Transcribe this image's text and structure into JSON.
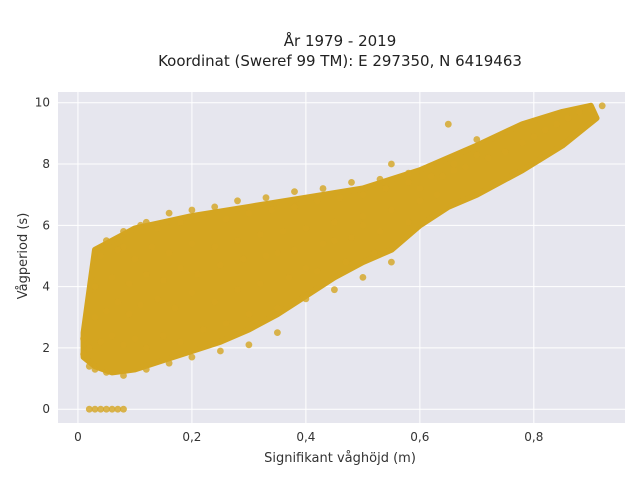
{
  "chart_data": {
    "type": "scatter",
    "title": "År 1979 - 2019",
    "subtitle": "Koordinat (Sweref 99 TM): E 297350, N 6419463",
    "xlabel": "Signifikant våghöjd (m)",
    "ylabel": "Vågperiod (s)",
    "xlim": [
      -0.035,
      0.96
    ],
    "ylim": [
      -0.45,
      10.35
    ],
    "xticks": [
      0,
      0.2,
      0.4,
      0.6,
      0.8
    ],
    "xtick_labels": [
      "0",
      "0,2",
      "0,4",
      "0,6",
      "0,8"
    ],
    "yticks": [
      0,
      2,
      4,
      6,
      8,
      10
    ],
    "ytick_labels": [
      "0",
      "2",
      "4",
      "6",
      "8",
      "10"
    ],
    "grid": true,
    "legend": "none",
    "series": [
      {
        "color": "#D4A520",
        "x": [
          0.02,
          0.03,
          0.04,
          0.05,
          0.06,
          0.07,
          0.08,
          0.01,
          0.01,
          0.02,
          0.03,
          0.05,
          0.08,
          0.12,
          0.16,
          0.2,
          0.25,
          0.3,
          0.35,
          0.02,
          0.04,
          0.06,
          0.08,
          0.1,
          0.12,
          0.15,
          0.18,
          0.22,
          0.26,
          0.3,
          0.35,
          0.4,
          0.45,
          0.5,
          0.55,
          0.03,
          0.05,
          0.07,
          0.09,
          0.11,
          0.14,
          0.17,
          0.2,
          0.24,
          0.28,
          0.32,
          0.37,
          0.42,
          0.47,
          0.52,
          0.03,
          0.06,
          0.09,
          0.12,
          0.15,
          0.18,
          0.21,
          0.25,
          0.29,
          0.33,
          0.38,
          0.43,
          0.48,
          0.53,
          0.58,
          0.04,
          0.07,
          0.1,
          0.13,
          0.16,
          0.2,
          0.24,
          0.28,
          0.32,
          0.36,
          0.4,
          0.45,
          0.5,
          0.55,
          0.6,
          0.63,
          0.05,
          0.08,
          0.11,
          0.14,
          0.18,
          0.22,
          0.26,
          0.3,
          0.34,
          0.38,
          0.42,
          0.46,
          0.5,
          0.54,
          0.58,
          0.62,
          0.66,
          0.08,
          0.12,
          0.16,
          0.2,
          0.24,
          0.28,
          0.33,
          0.38,
          0.43,
          0.48,
          0.53,
          0.58,
          0.62,
          0.66,
          0.7,
          0.6,
          0.64,
          0.68,
          0.72,
          0.75,
          0.78,
          0.8,
          0.82,
          0.84,
          0.86,
          0.88,
          0.9,
          0.92,
          0.35,
          0.4,
          0.45,
          0.5,
          0.55,
          0.65,
          0.7
        ],
        "y": [
          0,
          0,
          0,
          0,
          0,
          0,
          0,
          2.3,
          1.8,
          1.4,
          1.3,
          1.2,
          1.1,
          1.3,
          1.5,
          1.7,
          1.9,
          2.1,
          2.5,
          2.0,
          2.2,
          2.4,
          2.1,
          2.3,
          2.0,
          2.4,
          2.2,
          2.6,
          2.8,
          3.1,
          3.3,
          3.6,
          3.9,
          4.3,
          4.8,
          3.0,
          3.2,
          3.5,
          3.1,
          3.4,
          3.6,
          3.3,
          3.8,
          3.5,
          3.9,
          4.1,
          4.3,
          4.5,
          4.8,
          5.1,
          4.0,
          4.3,
          4.1,
          4.4,
          4.2,
          4.6,
          4.4,
          4.7,
          4.9,
          5.0,
          5.2,
          5.4,
          5.6,
          5.8,
          6.1,
          5.0,
          5.2,
          4.9,
          5.3,
          5.1,
          5.4,
          5.3,
          5.5,
          5.7,
          5.8,
          5.9,
          6.1,
          6.3,
          6.5,
          6.8,
          7.0,
          5.5,
          5.8,
          6.0,
          5.9,
          6.1,
          6.3,
          6.2,
          6.4,
          6.5,
          6.6,
          6.8,
          6.9,
          7.0,
          7.2,
          7.4,
          7.6,
          7.8,
          5.3,
          6.1,
          6.4,
          6.5,
          6.6,
          6.8,
          6.9,
          7.1,
          7.2,
          7.4,
          7.5,
          7.7,
          7.9,
          8.0,
          8.3,
          7.2,
          7.6,
          7.9,
          8.2,
          8.4,
          8.7,
          8.9,
          9.1,
          9.3,
          9.5,
          9.7,
          9.8,
          9.9,
          5.1,
          4.6,
          5.5,
          6.0,
          8.0,
          9.3,
          8.8
        ]
      }
    ]
  }
}
